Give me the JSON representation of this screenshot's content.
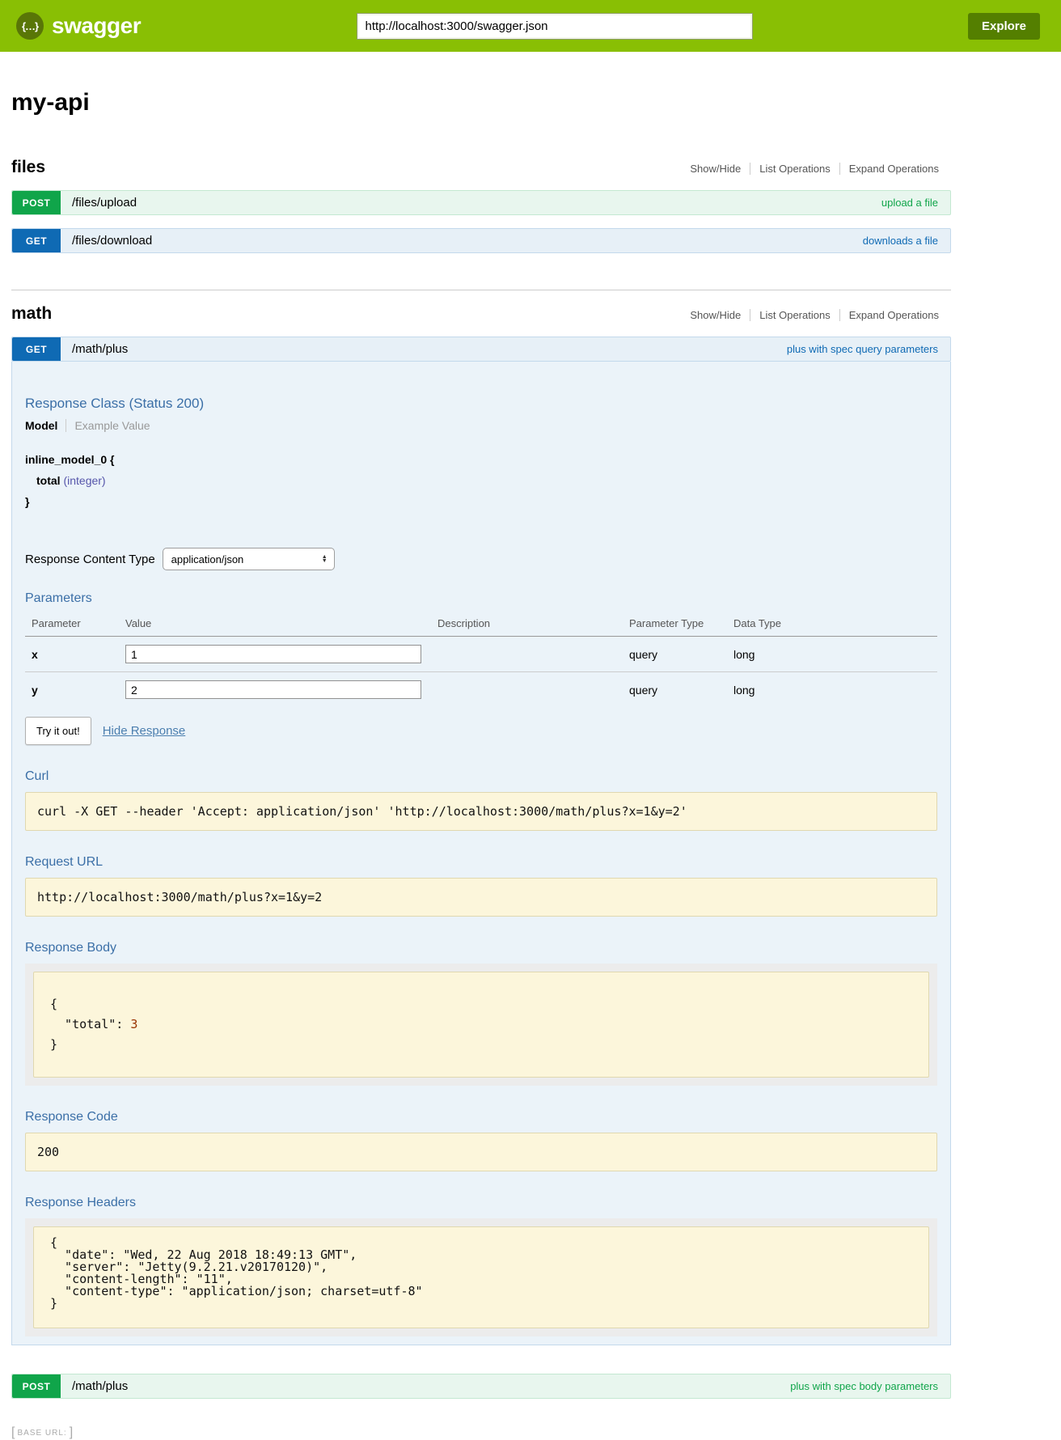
{
  "colors": {
    "brand_green": "#89bf04",
    "explore_button_green": "#547f00",
    "post_green": "#10a54a",
    "get_blue": "#0f6ab4",
    "heading_blue": "#3b6fa7",
    "code_block_bg": "#fcf6db"
  },
  "icons": {
    "logo": "{…}",
    "select_arrows": "▲\n▼"
  },
  "header": {
    "brand": "swagger",
    "url_value": "http://localhost:3000/swagger.json",
    "explore_label": "Explore"
  },
  "page_title": "my-api",
  "section_links": {
    "show_hide": "Show/Hide",
    "list_operations": "List Operations",
    "expand_operations": "Expand Operations"
  },
  "files": {
    "title": "files",
    "ops": [
      {
        "method": "POST",
        "path": "/files/upload",
        "summary": "upload a file"
      },
      {
        "method": "GET",
        "path": "/files/download",
        "summary": "downloads a file"
      }
    ]
  },
  "math": {
    "title": "math",
    "get_op": {
      "method": "GET",
      "path": "/math/plus",
      "summary": "plus with spec query parameters"
    },
    "post_op": {
      "method": "POST",
      "path": "/math/plus",
      "summary": "plus with spec body parameters"
    },
    "detail": {
      "response_class_heading": "Response Class (Status 200)",
      "tab_model": "Model",
      "tab_example": "Example Value",
      "model_open": "inline_model_0 {",
      "model_prop": "total",
      "model_prop_type": "(integer)",
      "model_close": "}",
      "response_content_type_label": "Response Content Type",
      "response_content_type_value": "application/json",
      "parameters_heading": "Parameters",
      "table_headers": [
        "Parameter",
        "Value",
        "Description",
        "Parameter Type",
        "Data Type"
      ],
      "params": [
        {
          "name": "x",
          "value": "1",
          "description": "",
          "param_type": "query",
          "data_type": "long"
        },
        {
          "name": "y",
          "value": "2",
          "description": "",
          "param_type": "query",
          "data_type": "long"
        }
      ],
      "try_it_out": "Try it out!",
      "hide_response": "Hide Response",
      "curl_heading": "Curl",
      "curl_command": "curl -X GET --header 'Accept: application/json' 'http://localhost:3000/math/plus?x=1&y=2'",
      "request_url_heading": "Request URL",
      "request_url": "http://localhost:3000/math/plus?x=1&y=2",
      "response_body_heading": "Response Body",
      "response_body": {
        "open": "{",
        "key": "  \"total\": ",
        "value": "3",
        "close": "}"
      },
      "response_code_heading": "Response Code",
      "response_code": "200",
      "response_headers_heading": "Response Headers",
      "response_headers_text": "{\n  \"date\": \"Wed, 22 Aug 2018 18:49:13 GMT\",\n  \"server\": \"Jetty(9.2.21.v20170120)\",\n  \"content-length\": \"11\",\n  \"content-type\": \"application/json; charset=utf-8\"\n}"
    }
  },
  "footer": {
    "bracket_open": "[",
    "base_url_label": "BASE URL:",
    "bracket_close": "]"
  }
}
